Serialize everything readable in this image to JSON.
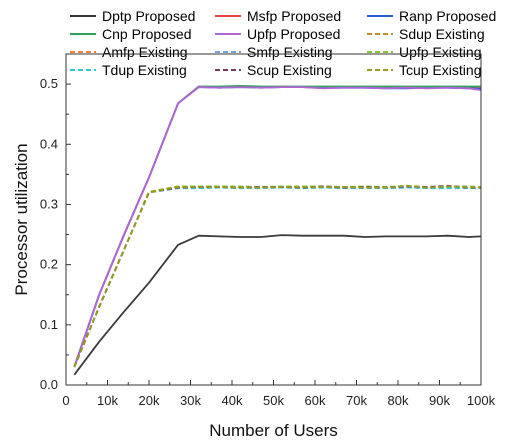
{
  "chart_data": {
    "type": "line",
    "title": "",
    "xlabel": "Number of Users",
    "ylabel": "Processor utilization",
    "xlim": [
      0,
      100000
    ],
    "ylim": [
      0.0,
      0.55
    ],
    "x_ticks": [
      0,
      10000,
      20000,
      30000,
      40000,
      50000,
      60000,
      70000,
      80000,
      90000,
      100000
    ],
    "x_tick_labels": [
      "0",
      "10k",
      "20k",
      "30k",
      "40k",
      "50k",
      "60k",
      "70k",
      "80k",
      "90k",
      "100k"
    ],
    "y_ticks": [
      0.0,
      0.1,
      0.2,
      0.3,
      0.4,
      0.5
    ],
    "y_tick_labels": [
      "0.0",
      "0.1",
      "0.2",
      "0.3",
      "0.4",
      "0.5"
    ],
    "grid": false,
    "legend_position": "top",
    "x": [
      2000,
      8000,
      14000,
      20000,
      27000,
      32000,
      37000,
      42000,
      47000,
      52000,
      57000,
      62000,
      67000,
      72000,
      77000,
      82000,
      87000,
      92000,
      97000,
      100000
    ],
    "series": [
      {
        "name": "Dptp Proposed",
        "color": "#3a3a3a",
        "dash": "solid",
        "values": [
          0.017,
          0.072,
          0.122,
          0.17,
          0.233,
          0.248,
          0.247,
          0.246,
          0.246,
          0.249,
          0.248,
          0.248,
          0.248,
          0.246,
          0.247,
          0.247,
          0.247,
          0.248,
          0.246,
          0.247
        ]
      },
      {
        "name": "Msfp Proposed",
        "color": "#e8403a",
        "dash": "solid",
        "values": [
          0.03,
          0.15,
          0.25,
          0.345,
          0.468,
          0.496,
          0.495,
          0.496,
          0.495,
          0.496,
          0.495,
          0.494,
          0.495,
          0.494,
          0.495,
          0.494,
          0.494,
          0.495,
          0.494,
          0.493
        ]
      },
      {
        "name": "Ranp Proposed",
        "color": "#2a5cd8",
        "dash": "solid",
        "values": [
          0.03,
          0.15,
          0.25,
          0.345,
          0.468,
          0.495,
          0.494,
          0.495,
          0.494,
          0.495,
          0.495,
          0.494,
          0.494,
          0.494,
          0.493,
          0.493,
          0.494,
          0.494,
          0.493,
          0.492
        ]
      },
      {
        "name": "Cnp Proposed",
        "color": "#2aa35a",
        "dash": "solid",
        "values": [
          0.03,
          0.15,
          0.25,
          0.345,
          0.468,
          0.496,
          0.496,
          0.497,
          0.496,
          0.496,
          0.496,
          0.496,
          0.496,
          0.496,
          0.496,
          0.496,
          0.496,
          0.496,
          0.496,
          0.496
        ]
      },
      {
        "name": "Upfp Proposed",
        "color": "#b564d6",
        "dash": "solid",
        "values": [
          0.03,
          0.15,
          0.25,
          0.345,
          0.468,
          0.495,
          0.494,
          0.495,
          0.494,
          0.495,
          0.495,
          0.493,
          0.494,
          0.494,
          0.493,
          0.494,
          0.493,
          0.494,
          0.493,
          0.49
        ]
      },
      {
        "name": "Sdup Existing",
        "color": "#c8862b",
        "dash": "dash",
        "values": [
          0.03,
          0.13,
          0.225,
          0.32,
          0.329,
          0.328,
          0.329,
          0.329,
          0.328,
          0.329,
          0.329,
          0.33,
          0.329,
          0.329,
          0.328,
          0.33,
          0.328,
          0.329,
          0.328,
          0.328
        ]
      },
      {
        "name": "Amfp Existing",
        "color": "#ff7a2a",
        "dash": "dash",
        "values": [
          0.03,
          0.13,
          0.225,
          0.321,
          0.33,
          0.329,
          0.33,
          0.329,
          0.329,
          0.328,
          0.33,
          0.329,
          0.328,
          0.329,
          0.329,
          0.33,
          0.328,
          0.33,
          0.329,
          0.329
        ]
      },
      {
        "name": "Smfp Existing",
        "color": "#6aa3e0",
        "dash": "dash",
        "values": [
          0.03,
          0.13,
          0.225,
          0.32,
          0.328,
          0.328,
          0.329,
          0.328,
          0.328,
          0.329,
          0.328,
          0.329,
          0.328,
          0.328,
          0.328,
          0.329,
          0.328,
          0.328,
          0.328,
          0.327
        ]
      },
      {
        "name": "Upfp Existing",
        "color": "#7fc62c",
        "dash": "dash",
        "values": [
          0.03,
          0.13,
          0.225,
          0.321,
          0.33,
          0.33,
          0.33,
          0.33,
          0.329,
          0.33,
          0.33,
          0.33,
          0.329,
          0.33,
          0.329,
          0.331,
          0.329,
          0.33,
          0.33,
          0.329
        ]
      },
      {
        "name": "Tdup Existing",
        "color": "#2cc9d2",
        "dash": "dash",
        "values": [
          0.03,
          0.13,
          0.225,
          0.32,
          0.327,
          0.327,
          0.328,
          0.327,
          0.327,
          0.328,
          0.327,
          0.328,
          0.327,
          0.327,
          0.327,
          0.328,
          0.327,
          0.327,
          0.327,
          0.327
        ]
      },
      {
        "name": "Scup Existing",
        "color": "#7a3a5e",
        "dash": "dash",
        "values": [
          0.03,
          0.13,
          0.225,
          0.32,
          0.328,
          0.329,
          0.329,
          0.328,
          0.329,
          0.329,
          0.328,
          0.33,
          0.328,
          0.329,
          0.328,
          0.33,
          0.329,
          0.331,
          0.328,
          0.328
        ]
      },
      {
        "name": "Tcup Existing",
        "color": "#9a9a1a",
        "dash": "dash",
        "values": [
          0.03,
          0.13,
          0.225,
          0.32,
          0.329,
          0.329,
          0.329,
          0.328,
          0.328,
          0.329,
          0.329,
          0.329,
          0.329,
          0.328,
          0.328,
          0.331,
          0.328,
          0.33,
          0.329,
          0.328
        ]
      }
    ]
  }
}
